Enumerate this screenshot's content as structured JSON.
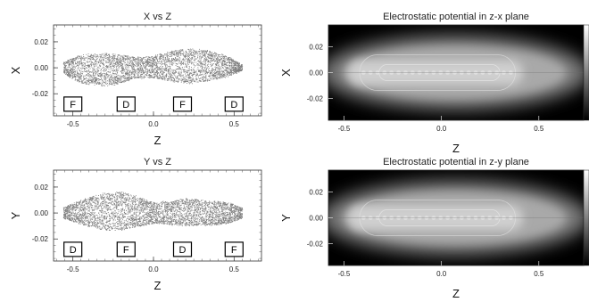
{
  "chart_data": [
    {
      "type": "scatter",
      "title": "X vs Z",
      "xlabel": "Z",
      "ylabel": "X",
      "xlim": [
        -0.62,
        0.67
      ],
      "ylim": [
        -0.037,
        0.033
      ],
      "xticks": [
        -0.5,
        0.0,
        0.5
      ],
      "xtick_labels": [
        "-0.5",
        "0.0",
        "0.5"
      ],
      "yticks": [
        0.02,
        0.0,
        -0.02
      ],
      "ytick_labels": [
        "0.02",
        "0.00",
        "-0.02"
      ],
      "grid": false,
      "envelope": {
        "z": [
          -0.56,
          -0.45,
          -0.3,
          -0.2,
          -0.12,
          0.0,
          0.1,
          0.22,
          0.34,
          0.46,
          0.55
        ],
        "half_width": [
          0.0045,
          0.011,
          0.0125,
          0.011,
          0.008,
          0.0085,
          0.0115,
          0.0135,
          0.0115,
          0.008,
          0.002
        ],
        "center": [
          0.0,
          -0.001,
          -0.0015,
          -0.001,
          0.0,
          0.0005,
          0.001,
          0.0015,
          0.0015,
          0.001,
          0.0
        ]
      },
      "magnets": {
        "labels": [
          "F",
          "D",
          "F",
          "D"
        ],
        "z": [
          -0.5,
          -0.17,
          0.18,
          0.5
        ],
        "y": -0.028
      }
    },
    {
      "type": "heatmap",
      "title": "Electrostatic potential in z-x plane",
      "xlabel": "Z",
      "ylabel": "X",
      "xlim": [
        -0.58,
        0.73
      ],
      "ylim": [
        -0.037,
        0.037
      ],
      "xticks": [
        -0.5,
        0.0,
        0.5
      ],
      "xtick_labels": [
        "-0.5",
        "0.0",
        "0.5"
      ],
      "yticks": [
        0.02,
        0.0,
        -0.02
      ],
      "ytick_labels": [
        "0.02",
        "0.00",
        "-0.02"
      ],
      "colormap": "grayscale, black low to white high",
      "colorbar": true
    },
    {
      "type": "scatter",
      "title": "Y vs Z",
      "xlabel": "Z",
      "ylabel": "Y",
      "xlim": [
        -0.62,
        0.67
      ],
      "ylim": [
        -0.037,
        0.033
      ],
      "xticks": [
        -0.5,
        0.0,
        0.5
      ],
      "xtick_labels": [
        "-0.5",
        "0.0",
        "0.5"
      ],
      "yticks": [
        0.02,
        0.0,
        -0.02
      ],
      "ytick_labels": [
        "0.02",
        "0.00",
        "-0.02"
      ],
      "grid": false,
      "envelope": {
        "z": [
          -0.56,
          -0.45,
          -0.32,
          -0.2,
          -0.1,
          0.0,
          0.1,
          0.2,
          0.32,
          0.45,
          0.55
        ],
        "half_width": [
          0.004,
          0.0095,
          0.014,
          0.015,
          0.0115,
          0.008,
          0.009,
          0.0105,
          0.0095,
          0.0085,
          0.004
        ],
        "center": [
          0.0,
          0.0005,
          0.001,
          0.0015,
          0.001,
          0.0,
          0.0,
          0.0005,
          0.0,
          0.0,
          0.0
        ]
      },
      "magnets": {
        "labels": [
          "D",
          "F",
          "D",
          "F"
        ],
        "z": [
          -0.5,
          -0.17,
          0.18,
          0.5
        ],
        "y": -0.028
      }
    },
    {
      "type": "heatmap",
      "title": "Electrostatic potential in z-y plane",
      "xlabel": "Z",
      "ylabel": "Y",
      "xlim": [
        -0.58,
        0.73
      ],
      "ylim": [
        -0.037,
        0.037
      ],
      "xticks": [
        -0.5,
        0.0,
        0.5
      ],
      "xtick_labels": [
        "-0.5",
        "0.0",
        "0.5"
      ],
      "yticks": [
        0.02,
        0.0,
        -0.02
      ],
      "ytick_labels": [
        "0.02",
        "0.00",
        "-0.02"
      ],
      "colormap": "grayscale, black low to white high",
      "colorbar": true
    }
  ]
}
